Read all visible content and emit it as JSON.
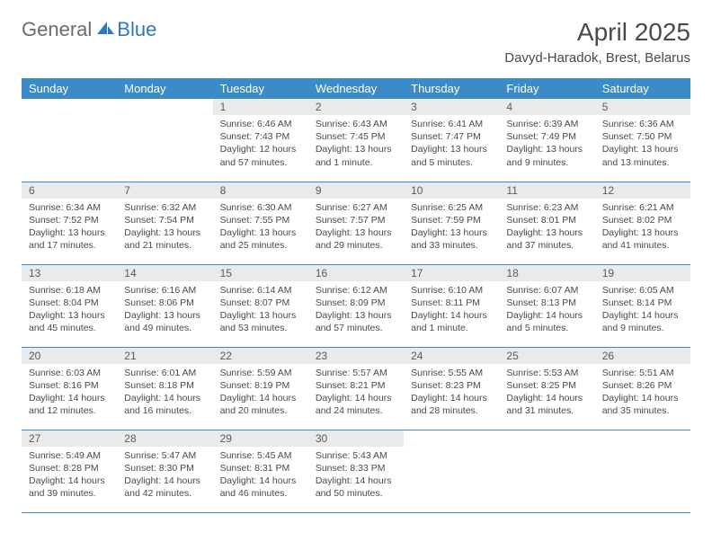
{
  "logo": {
    "general": "General",
    "blue": "Blue"
  },
  "title": "April 2025",
  "location": "Davyd-Haradok, Brest, Belarus",
  "colors": {
    "header_bg": "#3b8bc9",
    "header_text": "#ffffff",
    "daynum_bg": "#e9eaeb",
    "text": "#4a4a4a",
    "logo_gray": "#6b6b6b",
    "logo_blue": "#2f78b9"
  },
  "dayHeaders": [
    "Sunday",
    "Monday",
    "Tuesday",
    "Wednesday",
    "Thursday",
    "Friday",
    "Saturday"
  ],
  "weeks": [
    [
      null,
      null,
      {
        "n": "1",
        "sr": "6:46 AM",
        "ss": "7:43 PM",
        "dl": "12 hours and 57 minutes."
      },
      {
        "n": "2",
        "sr": "6:43 AM",
        "ss": "7:45 PM",
        "dl": "13 hours and 1 minute."
      },
      {
        "n": "3",
        "sr": "6:41 AM",
        "ss": "7:47 PM",
        "dl": "13 hours and 5 minutes."
      },
      {
        "n": "4",
        "sr": "6:39 AM",
        "ss": "7:49 PM",
        "dl": "13 hours and 9 minutes."
      },
      {
        "n": "5",
        "sr": "6:36 AM",
        "ss": "7:50 PM",
        "dl": "13 hours and 13 minutes."
      }
    ],
    [
      {
        "n": "6",
        "sr": "6:34 AM",
        "ss": "7:52 PM",
        "dl": "13 hours and 17 minutes."
      },
      {
        "n": "7",
        "sr": "6:32 AM",
        "ss": "7:54 PM",
        "dl": "13 hours and 21 minutes."
      },
      {
        "n": "8",
        "sr": "6:30 AM",
        "ss": "7:55 PM",
        "dl": "13 hours and 25 minutes."
      },
      {
        "n": "9",
        "sr": "6:27 AM",
        "ss": "7:57 PM",
        "dl": "13 hours and 29 minutes."
      },
      {
        "n": "10",
        "sr": "6:25 AM",
        "ss": "7:59 PM",
        "dl": "13 hours and 33 minutes."
      },
      {
        "n": "11",
        "sr": "6:23 AM",
        "ss": "8:01 PM",
        "dl": "13 hours and 37 minutes."
      },
      {
        "n": "12",
        "sr": "6:21 AM",
        "ss": "8:02 PM",
        "dl": "13 hours and 41 minutes."
      }
    ],
    [
      {
        "n": "13",
        "sr": "6:18 AM",
        "ss": "8:04 PM",
        "dl": "13 hours and 45 minutes."
      },
      {
        "n": "14",
        "sr": "6:16 AM",
        "ss": "8:06 PM",
        "dl": "13 hours and 49 minutes."
      },
      {
        "n": "15",
        "sr": "6:14 AM",
        "ss": "8:07 PM",
        "dl": "13 hours and 53 minutes."
      },
      {
        "n": "16",
        "sr": "6:12 AM",
        "ss": "8:09 PM",
        "dl": "13 hours and 57 minutes."
      },
      {
        "n": "17",
        "sr": "6:10 AM",
        "ss": "8:11 PM",
        "dl": "14 hours and 1 minute."
      },
      {
        "n": "18",
        "sr": "6:07 AM",
        "ss": "8:13 PM",
        "dl": "14 hours and 5 minutes."
      },
      {
        "n": "19",
        "sr": "6:05 AM",
        "ss": "8:14 PM",
        "dl": "14 hours and 9 minutes."
      }
    ],
    [
      {
        "n": "20",
        "sr": "6:03 AM",
        "ss": "8:16 PM",
        "dl": "14 hours and 12 minutes."
      },
      {
        "n": "21",
        "sr": "6:01 AM",
        "ss": "8:18 PM",
        "dl": "14 hours and 16 minutes."
      },
      {
        "n": "22",
        "sr": "5:59 AM",
        "ss": "8:19 PM",
        "dl": "14 hours and 20 minutes."
      },
      {
        "n": "23",
        "sr": "5:57 AM",
        "ss": "8:21 PM",
        "dl": "14 hours and 24 minutes."
      },
      {
        "n": "24",
        "sr": "5:55 AM",
        "ss": "8:23 PM",
        "dl": "14 hours and 28 minutes."
      },
      {
        "n": "25",
        "sr": "5:53 AM",
        "ss": "8:25 PM",
        "dl": "14 hours and 31 minutes."
      },
      {
        "n": "26",
        "sr": "5:51 AM",
        "ss": "8:26 PM",
        "dl": "14 hours and 35 minutes."
      }
    ],
    [
      {
        "n": "27",
        "sr": "5:49 AM",
        "ss": "8:28 PM",
        "dl": "14 hours and 39 minutes."
      },
      {
        "n": "28",
        "sr": "5:47 AM",
        "ss": "8:30 PM",
        "dl": "14 hours and 42 minutes."
      },
      {
        "n": "29",
        "sr": "5:45 AM",
        "ss": "8:31 PM",
        "dl": "14 hours and 46 minutes."
      },
      {
        "n": "30",
        "sr": "5:43 AM",
        "ss": "8:33 PM",
        "dl": "14 hours and 50 minutes."
      },
      null,
      null,
      null
    ]
  ],
  "labels": {
    "sunrise": "Sunrise:",
    "sunset": "Sunset:",
    "daylight": "Daylight:"
  }
}
